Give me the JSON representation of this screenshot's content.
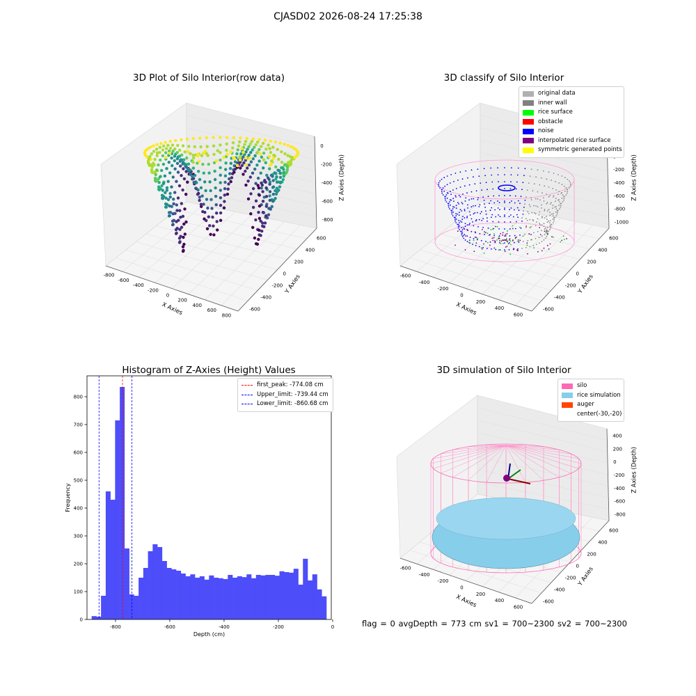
{
  "suptitle": "CJASD02 2026-08-24 17:25:38",
  "panels": {
    "raw": {
      "title": "3D Plot of Silo Interior(row data)",
      "xlabel": "X Axies",
      "ylabel": "Y Axies",
      "zlabel": "Z Axies (Depth)",
      "xticks": [
        "-800",
        "-600",
        "-400",
        "-200",
        "0",
        "200",
        "400",
        "600",
        "800"
      ],
      "yticks": [
        "-600",
        "-400",
        "-200",
        "0",
        "200",
        "400",
        "600"
      ],
      "zticks": [
        "0",
        "-200",
        "-400",
        "-600",
        "-800"
      ]
    },
    "classify": {
      "title": "3D classify of Silo Interior",
      "xlabel": "X Axies",
      "ylabel": "Y Axies",
      "zlabel": "Z Axies (Depth)",
      "xticks": [
        "-600",
        "-400",
        "-200",
        "0",
        "200",
        "400",
        "600"
      ],
      "yticks": [
        "-600",
        "-400",
        "-200",
        "0",
        "200",
        "400",
        "600"
      ],
      "zticks": [
        "200",
        "0",
        "-200",
        "-400",
        "-600",
        "-800",
        "-1000"
      ],
      "legend": [
        {
          "label": "original data",
          "color": "#b0b0b0"
        },
        {
          "label": "inner wall",
          "color": "#808080"
        },
        {
          "label": "rice surface",
          "color": "#00ff00"
        },
        {
          "label": "obstacle",
          "color": "#ff0000"
        },
        {
          "label": "noise",
          "color": "#0000ff"
        },
        {
          "label": "interpolated rice surface",
          "color": "#800080"
        },
        {
          "label": "symmetric generated points",
          "color": "#ffff00"
        }
      ]
    },
    "simulation": {
      "title": "3D simulation of Silo Interior",
      "xlabel": "X Axies",
      "ylabel": "Y Axies",
      "zlabel": "Z Axies (Depth)",
      "xticks": [
        "-600",
        "-400",
        "-200",
        "0",
        "200",
        "400",
        "600"
      ],
      "yticks": [
        "-600",
        "-400",
        "-200",
        "0",
        "200",
        "400",
        "600"
      ],
      "zticks": [
        "400",
        "200",
        "0",
        "-200",
        "-400",
        "-600",
        "-800"
      ],
      "legend": [
        {
          "label": "silo",
          "color": "#ff69b4"
        },
        {
          "label": "rice simulation",
          "color": "#87ceeb"
        },
        {
          "label": "auger",
          "color": "#ff4500"
        },
        {
          "label": "center(-30,-20)",
          "color": "#ffffff"
        }
      ]
    }
  },
  "chart_data": {
    "type": "bar",
    "title": "Histogram of Z-Axies (Height) Values",
    "xlabel": "Depth (cm)",
    "ylabel": "Frequency",
    "xlim": [
      -905,
      -5
    ],
    "ylim": [
      0,
      875
    ],
    "xticks": [
      -800,
      -600,
      -400,
      -200,
      0
    ],
    "yticks": [
      0,
      100,
      200,
      300,
      400,
      500,
      600,
      700,
      800
    ],
    "bin_start": -888,
    "bin_width": 17.3,
    "values": [
      12,
      10,
      85,
      460,
      430,
      715,
      835,
      255,
      90,
      85,
      150,
      185,
      245,
      270,
      260,
      210,
      185,
      180,
      175,
      165,
      155,
      162,
      150,
      155,
      143,
      158,
      150,
      148,
      145,
      160,
      150,
      155,
      152,
      162,
      148,
      160,
      158,
      160,
      160,
      157,
      173,
      170,
      168,
      182,
      125,
      218,
      140,
      162,
      108,
      83
    ],
    "bar_color": "#4d4dfa",
    "legend_position": "upper right",
    "vlines": [
      {
        "label": "first_peak: -774.08 cm",
        "x": -774.08,
        "color": "#ff0000"
      },
      {
        "label": "Upper_limit: -739.44 cm",
        "x": -739.44,
        "color": "#0000ff"
      },
      {
        "label": "Lower_limit: -860.68 cm",
        "x": -860.68,
        "color": "#0000ff"
      }
    ]
  },
  "status": {
    "text": "flag = 0     avgDepth = 773 cm  sv1 = 700~2300  sv2 = 700~2300"
  }
}
